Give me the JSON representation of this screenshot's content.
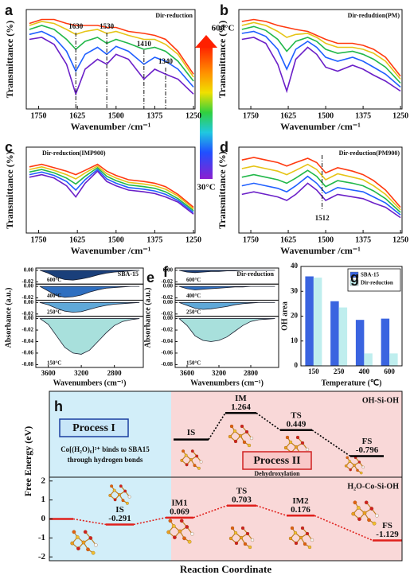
{
  "colorbar": {
    "top": "600°C",
    "bottom": "30°C"
  },
  "chart_data": [
    {
      "type": "line",
      "panel": "a",
      "title": "Dir-reduction",
      "xlabel": "Wavenumber /cm⁻¹",
      "ylabel": "Transmittance (%)",
      "x": [
        1780,
        1740,
        1700,
        1660,
        1630,
        1600,
        1560,
        1530,
        1500,
        1460,
        1410,
        1375,
        1340,
        1300,
        1250
      ],
      "xlim": [
        1790,
        1245
      ],
      "xticks": [
        1750,
        1625,
        1500,
        1375,
        1250
      ],
      "ylim": [
        0,
        100
      ],
      "vlines": [
        1630,
        1530,
        1410,
        1340
      ],
      "series": [
        {
          "color": "#6a1fc8",
          "values": [
            70,
            72,
            65,
            45,
            15,
            40,
            50,
            45,
            55,
            50,
            30,
            40,
            35,
            30,
            15
          ]
        },
        {
          "color": "#1f5fff",
          "values": [
            75,
            78,
            72,
            58,
            38,
            55,
            62,
            55,
            63,
            58,
            45,
            52,
            48,
            40,
            22
          ]
        },
        {
          "color": "#22b84a",
          "values": [
            80,
            84,
            80,
            70,
            60,
            68,
            72,
            66,
            70,
            66,
            60,
            62,
            58,
            48,
            28
          ]
        },
        {
          "color": "#e6c416",
          "values": [
            84,
            88,
            86,
            80,
            75,
            78,
            80,
            76,
            78,
            74,
            70,
            70,
            65,
            55,
            32
          ]
        },
        {
          "color": "#ff3a10",
          "values": [
            86,
            90,
            90,
            86,
            84,
            84,
            84,
            82,
            82,
            78,
            76,
            74,
            70,
            58,
            35
          ]
        }
      ]
    },
    {
      "type": "line",
      "panel": "b",
      "title": "Dir-redudtion(PM)",
      "xlabel": "Wavenumber /cm⁻¹",
      "ylabel": "Transmittance (%)",
      "x": [
        1780,
        1740,
        1700,
        1660,
        1630,
        1600,
        1560,
        1530,
        1500,
        1460,
        1410,
        1375,
        1340,
        1300,
        1250
      ],
      "xlim": [
        1790,
        1245
      ],
      "xticks": [
        1750,
        1625,
        1500,
        1375,
        1250
      ],
      "ylim": [
        0,
        100
      ],
      "series": [
        {
          "color": "#6a1fc8",
          "values": [
            70,
            72,
            66,
            45,
            18,
            50,
            62,
            55,
            42,
            38,
            44,
            40,
            34,
            28,
            18
          ]
        },
        {
          "color": "#1f5fff",
          "values": [
            76,
            78,
            73,
            60,
            40,
            60,
            68,
            62,
            52,
            48,
            52,
            48,
            42,
            35,
            22
          ]
        },
        {
          "color": "#22b84a",
          "values": [
            80,
            83,
            79,
            70,
            58,
            68,
            72,
            68,
            60,
            56,
            58,
            55,
            50,
            42,
            26
          ]
        },
        {
          "color": "#e6c416",
          "values": [
            84,
            87,
            84,
            78,
            72,
            75,
            76,
            72,
            66,
            62,
            62,
            60,
            56,
            48,
            30
          ]
        },
        {
          "color": "#ff3a10",
          "values": [
            88,
            90,
            88,
            84,
            82,
            80,
            78,
            74,
            70,
            66,
            66,
            64,
            60,
            52,
            33
          ]
        }
      ]
    },
    {
      "type": "line",
      "panel": "c",
      "title": "Dir-reduction(IMP900)",
      "xlabel": "Wavenumber /cm⁻¹",
      "ylabel": "Transmittance (%)",
      "x": [
        1780,
        1740,
        1700,
        1660,
        1630,
        1600,
        1560,
        1530,
        1500,
        1460,
        1410,
        1375,
        1340,
        1300,
        1250
      ],
      "xlim": [
        1790,
        1245
      ],
      "xticks": [
        1750,
        1625,
        1500,
        1375,
        1250
      ],
      "ylim": [
        0,
        100
      ],
      "series": [
        {
          "color": "#6a1fc8",
          "values": [
            65,
            68,
            64,
            55,
            42,
            58,
            72,
            60,
            55,
            50,
            48,
            46,
            42,
            36,
            22
          ]
        },
        {
          "color": "#1f5fff",
          "values": [
            68,
            71,
            67,
            60,
            50,
            62,
            74,
            63,
            58,
            53,
            51,
            49,
            45,
            38,
            24
          ]
        },
        {
          "color": "#22b84a",
          "values": [
            71,
            74,
            70,
            64,
            57,
            66,
            76,
            66,
            61,
            56,
            54,
            52,
            48,
            40,
            26
          ]
        },
        {
          "color": "#e6c416",
          "values": [
            74,
            77,
            73,
            68,
            63,
            70,
            78,
            69,
            64,
            59,
            57,
            55,
            51,
            43,
            28
          ]
        },
        {
          "color": "#ff3a10",
          "values": [
            77,
            80,
            76,
            72,
            68,
            73,
            80,
            72,
            67,
            62,
            60,
            58,
            54,
            45,
            30
          ]
        }
      ]
    },
    {
      "type": "line",
      "panel": "d",
      "title": "Dir-reduction(PM900)",
      "xlabel": "Wavenumber /cm⁻¹",
      "ylabel": "Transmittance (%)",
      "x": [
        1780,
        1740,
        1700,
        1660,
        1630,
        1600,
        1560,
        1530,
        1500,
        1460,
        1410,
        1375,
        1340,
        1300,
        1250
      ],
      "xlim": [
        1790,
        1245
      ],
      "xticks": [
        1750,
        1625,
        1500,
        1375,
        1250
      ],
      "ylim": [
        0,
        100
      ],
      "vlines": [
        1512
      ],
      "series": [
        {
          "color": "#6a1fc8",
          "values": [
            45,
            48,
            45,
            42,
            38,
            45,
            58,
            50,
            38,
            45,
            42,
            40,
            35,
            30,
            18
          ]
        },
        {
          "color": "#1f5fff",
          "values": [
            55,
            58,
            55,
            52,
            48,
            55,
            66,
            58,
            46,
            53,
            50,
            48,
            42,
            35,
            21
          ]
        },
        {
          "color": "#22b84a",
          "values": [
            65,
            68,
            65,
            62,
            58,
            64,
            73,
            66,
            54,
            61,
            58,
            55,
            49,
            40,
            24
          ]
        },
        {
          "color": "#e6c416",
          "values": [
            75,
            78,
            75,
            72,
            68,
            73,
            80,
            74,
            62,
            69,
            65,
            62,
            55,
            45,
            27
          ]
        },
        {
          "color": "#ff3a10",
          "values": [
            85,
            88,
            85,
            82,
            78,
            82,
            87,
            82,
            70,
            76,
            72,
            68,
            61,
            50,
            30
          ]
        }
      ]
    },
    {
      "type": "area",
      "panel": "e",
      "title": "SBA-15",
      "xlabel": "Wavenumbers (cm⁻¹)",
      "ylabel": "Absorbance (a.u.)",
      "x": [
        3700,
        3600,
        3500,
        3400,
        3300,
        3200,
        3100,
        3000,
        2900,
        2800,
        2700,
        2600,
        2500
      ],
      "xlim": [
        3750,
        2450
      ],
      "xticks": [
        3600,
        3200,
        2800
      ],
      "subplots": [
        {
          "label": "600°C",
          "color": "#1a3f7a",
          "ylim": [
            -0.024,
            0.004
          ],
          "yticks": [
            {
              "value": 0,
              "label": "0.00"
            },
            {
              "value": -0.02,
              "label": "-0.02"
            }
          ],
          "values": [
            0,
            -0.005,
            -0.012,
            -0.016,
            -0.017,
            -0.015,
            -0.012,
            -0.008,
            -0.005,
            -0.003,
            -0.002,
            -0.001,
            0
          ]
        },
        {
          "label": "400°C",
          "color": "#2f6fc0",
          "ylim": [
            -0.024,
            0.004
          ],
          "yticks": [
            {
              "value": 0,
              "label": "0.00"
            },
            {
              "value": -0.02,
              "label": "-0.02"
            }
          ],
          "values": [
            0,
            -0.008,
            -0.016,
            -0.019,
            -0.018,
            -0.015,
            -0.01,
            -0.006,
            -0.003,
            -0.002,
            -0.001,
            0,
            0
          ]
        },
        {
          "label": "250°C",
          "color": "#5fa8d8",
          "ylim": [
            -0.024,
            0.004
          ],
          "yticks": [
            {
              "value": 0,
              "label": "0.00"
            },
            {
              "value": -0.02,
              "label": "-0.02"
            }
          ],
          "values": [
            0,
            -0.004,
            -0.01,
            -0.015,
            -0.017,
            -0.016,
            -0.012,
            -0.008,
            -0.005,
            -0.003,
            -0.002,
            -0.001,
            0
          ]
        },
        {
          "label": "150°C",
          "color": "#a8e0dc",
          "ylim": [
            -0.085,
            0.004
          ],
          "yticks": [
            {
              "value": 0,
              "label": "0.00"
            },
            {
              "value": -0.02,
              "label": "-0.02"
            },
            {
              "value": -0.04,
              "label": "-0.04"
            },
            {
              "value": -0.06,
              "label": "-0.06"
            },
            {
              "value": -0.08,
              "label": "-0.08"
            }
          ],
          "values": [
            0,
            -0.01,
            -0.03,
            -0.05,
            -0.06,
            -0.062,
            -0.055,
            -0.04,
            -0.025,
            -0.012,
            -0.005,
            -0.002,
            0
          ]
        }
      ]
    },
    {
      "type": "area",
      "panel": "f",
      "title": "Dir-reduction",
      "xlabel": "Wavenumbers (cm⁻¹)",
      "ylabel": "Absorbance (a.u.)",
      "x": [
        3700,
        3600,
        3500,
        3400,
        3300,
        3200,
        3100,
        3000,
        2900,
        2800,
        2700,
        2600,
        2500
      ],
      "xlim": [
        3750,
        2450
      ],
      "xticks": [
        3600,
        3200,
        2800
      ],
      "subplots": [
        {
          "label": "600°C",
          "color": "#1a3f7a",
          "ylim": [
            -0.024,
            0.004
          ],
          "yticks": [
            {
              "value": 0,
              "label": "0.00"
            },
            {
              "value": -0.02,
              "label": "-0.02"
            }
          ],
          "values": [
            0,
            -0.003,
            -0.004,
            -0.003,
            -0.002,
            -0.002,
            -0.001,
            -0.001,
            0,
            0,
            0,
            0,
            0
          ]
        },
        {
          "label": "400°C",
          "color": "#2f6fc0",
          "ylim": [
            -0.024,
            0.004
          ],
          "yticks": [
            {
              "value": 0,
              "label": "0.00"
            },
            {
              "value": -0.02,
              "label": "-0.02"
            }
          ],
          "values": [
            0,
            -0.004,
            -0.006,
            -0.005,
            -0.004,
            -0.003,
            -0.002,
            -0.001,
            -0.001,
            0,
            0,
            0,
            0
          ]
        },
        {
          "label": "250°C",
          "color": "#5fa8d8",
          "ylim": [
            -0.024,
            0.004
          ],
          "yticks": [
            {
              "value": 0,
              "label": "0.00"
            },
            {
              "value": -0.02,
              "label": "-0.02"
            }
          ],
          "values": [
            0,
            -0.005,
            -0.01,
            -0.012,
            -0.011,
            -0.009,
            -0.007,
            -0.004,
            -0.002,
            -0.001,
            0,
            0,
            0
          ]
        },
        {
          "label": "150°C",
          "color": "#a8e0dc",
          "ylim": [
            -0.085,
            0.004
          ],
          "yticks": [
            {
              "value": 0,
              "label": "0.00"
            },
            {
              "value": -0.02,
              "label": "-0.02"
            },
            {
              "value": -0.04,
              "label": "-0.04"
            },
            {
              "value": -0.06,
              "label": "-0.06"
            },
            {
              "value": -0.08,
              "label": "-0.08"
            }
          ],
          "values": [
            0,
            -0.012,
            -0.03,
            -0.038,
            -0.04,
            -0.038,
            -0.032,
            -0.022,
            -0.012,
            -0.005,
            -0.002,
            -0.001,
            0
          ]
        }
      ]
    },
    {
      "type": "bar",
      "panel": "g",
      "xlabel": "Temperature (℃)",
      "ylabel": "OH area",
      "categories": [
        "150",
        "250",
        "400",
        "600"
      ],
      "series": [
        {
          "name": "SBA-15",
          "color": "#3a64e0",
          "values": [
            36,
            26,
            18.5,
            19
          ]
        },
        {
          "name": "Dir-reduction",
          "color": "#bfeeee",
          "values": [
            35.5,
            23.5,
            5,
            5
          ]
        }
      ],
      "ylim": [
        0,
        40
      ],
      "yticks": [
        0,
        10,
        20,
        30,
        40
      ],
      "legend": "upper right"
    },
    {
      "type": "energy",
      "panel": "h",
      "ylabel": "Free Energy (eV)",
      "xlabel": "Reaction Coordinate",
      "process_1": {
        "title": "Process I",
        "text": [
          "Co[(H₂O)₆]²⁺ binds to SBA15",
          "through hydrogen bonds"
        ]
      },
      "process_2": {
        "title": "Process II",
        "text": "Dehydroxylation"
      },
      "sections": [
        {
          "title": "OH-Si-OH",
          "color": "#000000",
          "ylim": [
            -1.8,
            2.3
          ],
          "categories": [
            "IS",
            "IM",
            "TS",
            "FS"
          ],
          "values": [
            0,
            1.264,
            0.449,
            -0.796
          ],
          "value_labels": [
            null,
            "1.264",
            "0.449",
            "-0.796"
          ]
        },
        {
          "title": "H₂O-Co-Si-OH",
          "color": "#e0201c",
          "ylim": [
            -2.2,
            2.2
          ],
          "yticks": [
            -2,
            -1,
            0,
            1,
            2
          ],
          "categories": [
            null,
            "IS",
            "IM1",
            "TS",
            "IM2",
            "FS"
          ],
          "values": [
            0,
            -0.291,
            0.069,
            0.703,
            0.176,
            -1.129
          ],
          "value_labels": [
            null,
            "-0.291",
            "0.069",
            "0.703",
            "0.176",
            "-1.129"
          ]
        }
      ]
    }
  ]
}
